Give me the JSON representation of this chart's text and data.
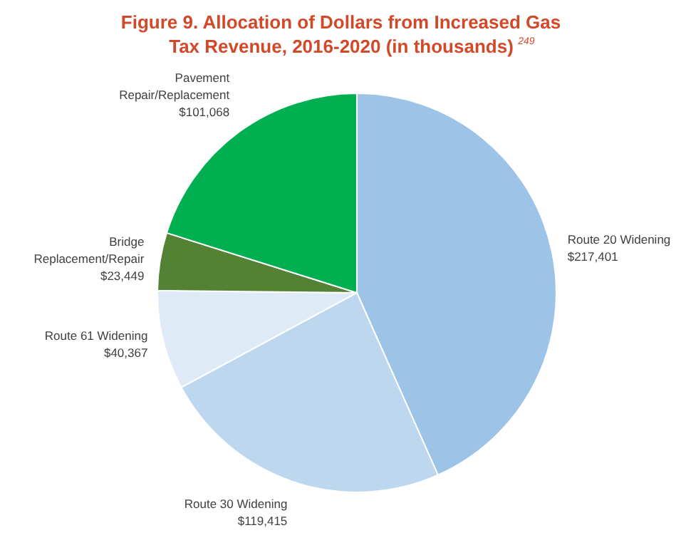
{
  "chart_data": {
    "type": "pie",
    "title": "Figure 9. Allocation of Dollars from Increased Gas\nTax Revenue, 2016-2020 (in thousands)$^{249}$",
    "categories": [
      "Route 20 Widening",
      "Route 30 Widening",
      "Route 61 Widening",
      "Bridge\nReplacement/Repair",
      "Pavement\nRepair/Replacement"
    ],
    "values": [
      217401,
      119415,
      40367,
      23449,
      101068
    ],
    "value_labels": [
      "$217,401",
      "$119,415",
      "$40,367",
      "$23,449",
      "$101,068"
    ],
    "colors": [
      "#9dc3e6",
      "#bdd7ee",
      "#deebf7",
      "#548235",
      "#00b050"
    ]
  }
}
